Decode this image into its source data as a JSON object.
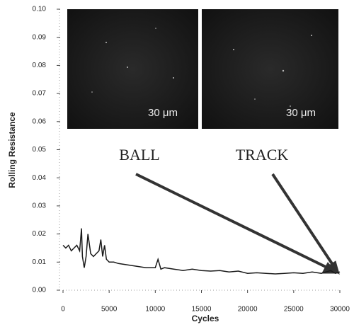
{
  "chart_data": {
    "type": "line",
    "x_label": "Cycles",
    "y_label": "Rolling Resistance",
    "x": [
      0,
      300,
      600,
      900,
      1200,
      1500,
      1800,
      2000,
      2100,
      2300,
      2500,
      2700,
      3000,
      3300,
      3600,
      3900,
      4100,
      4300,
      4500,
      4700,
      5000,
      5500,
      6000,
      7000,
      8000,
      9000,
      10000,
      10300,
      10600,
      11000,
      12000,
      13000,
      14000,
      15000,
      16000,
      17000,
      18000,
      19000,
      20000,
      21000,
      22000,
      23000,
      24000,
      25000,
      26000,
      27000,
      28000,
      29000,
      29500,
      30000
    ],
    "values": [
      0.016,
      0.015,
      0.016,
      0.014,
      0.015,
      0.016,
      0.014,
      0.022,
      0.012,
      0.008,
      0.012,
      0.02,
      0.013,
      0.012,
      0.013,
      0.014,
      0.018,
      0.012,
      0.016,
      0.011,
      0.01,
      0.01,
      0.0095,
      0.009,
      0.0085,
      0.008,
      0.008,
      0.011,
      0.0075,
      0.008,
      0.0075,
      0.007,
      0.0075,
      0.007,
      0.0068,
      0.007,
      0.0065,
      0.0068,
      0.006,
      0.0062,
      0.006,
      0.0058,
      0.006,
      0.0062,
      0.006,
      0.0065,
      0.006,
      0.007,
      0.006,
      0.0065
    ],
    "color": "#1a1a1a",
    "xlim": [
      0,
      30000
    ],
    "ylim": [
      0,
      0.1
    ],
    "xticks": [
      0,
      5000,
      10000,
      15000,
      20000,
      25000,
      30000
    ],
    "yticks": [
      {
        "value": 0,
        "label": "0.00"
      },
      0.01,
      0.02,
      0.03,
      0.04,
      0.05,
      0.06,
      0.07,
      0.08,
      0.09,
      {
        "value": 0.1,
        "label": "0.10"
      }
    ],
    "inset_labels": [
      "30 μm",
      "30 μm"
    ],
    "annotations": [
      "BALL",
      "TRACK"
    ]
  }
}
